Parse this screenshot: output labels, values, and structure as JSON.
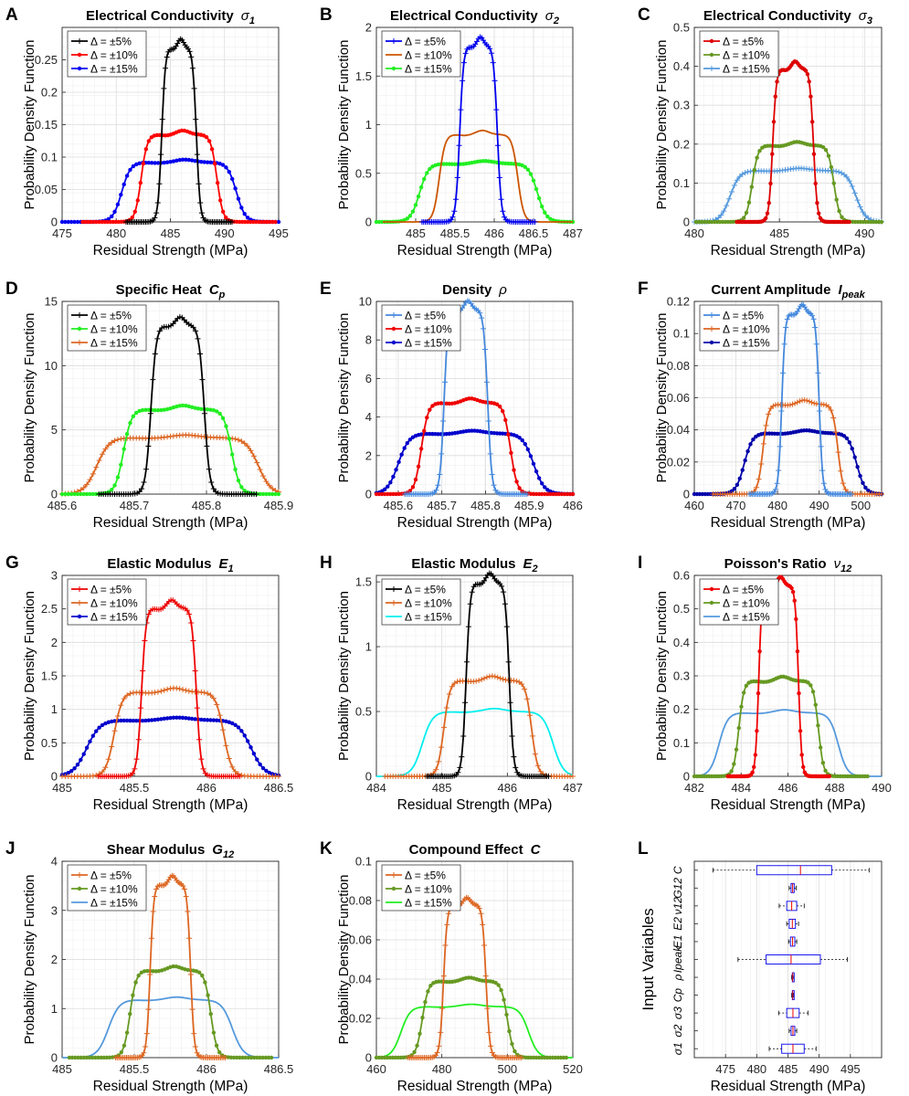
{
  "figure": {
    "xlabel": "Residual Strength (MPa)",
    "ylabel": "Probability Density Function",
    "legend_entries": [
      "Δ = ±5%",
      "Δ = ±10%",
      "Δ = ±15%"
    ]
  },
  "chart_data": [
    {
      "type": "line",
      "letter": "A",
      "title": "Electrical Conductivity",
      "symbol": "σ",
      "sub": "1",
      "xlim": [
        475,
        495
      ],
      "xticks": [
        475,
        480,
        485,
        490,
        495
      ],
      "ylim": [
        0,
        0.3
      ],
      "yticks": [
        0,
        0.05,
        0.1,
        0.15,
        0.2,
        0.25
      ],
      "xlabel": "Residual Strength (MPa)",
      "ylabel": "Probability Density Function",
      "series": [
        {
          "name": "Δ = ±5%",
          "color": "#000000",
          "marker": "plus",
          "center": 485.8,
          "half": 1.6,
          "edge": 0.55,
          "peak": 0.27
        },
        {
          "name": "Δ = ±10%",
          "color": "#ff0000",
          "marker": "dot",
          "center": 485.8,
          "half": 3.5,
          "edge": 0.9,
          "peak": 0.135
        },
        {
          "name": "Δ = ±15%",
          "color": "#0000ee",
          "marker": "dot",
          "center": 485.8,
          "half": 5.3,
          "edge": 1.3,
          "peak": 0.092
        }
      ]
    },
    {
      "type": "line",
      "letter": "B",
      "title": "Electrical Conductivity",
      "symbol": "σ",
      "sub": "2",
      "xlim": [
        484.5,
        487
      ],
      "xticks": [
        485,
        485.5,
        486,
        486.5,
        487
      ],
      "ylim": [
        0,
        2
      ],
      "yticks": [
        0,
        0.5,
        1,
        1.5,
        2
      ],
      "xlabel": "Residual Strength (MPa)",
      "ylabel": "Probability Density Function",
      "series": [
        {
          "name": "Δ = ±5%",
          "color": "#0000ee",
          "marker": "plus",
          "center": 485.8,
          "half": 0.24,
          "edge": 0.08,
          "peak": 1.82
        },
        {
          "name": "Δ = ±10%",
          "color": "#cc5500",
          "marker": "none",
          "center": 485.8,
          "half": 0.5,
          "edge": 0.12,
          "peak": 0.9
        },
        {
          "name": "Δ = ±15%",
          "color": "#22ee22",
          "marker": "dot",
          "center": 485.8,
          "half": 0.75,
          "edge": 0.18,
          "peak": 0.6
        }
      ]
    },
    {
      "type": "line",
      "letter": "C",
      "title": "Electrical Conductivity",
      "symbol": "σ",
      "sub": "3",
      "xlim": [
        480,
        491
      ],
      "xticks": [
        480,
        485,
        490
      ],
      "ylim": [
        0,
        0.5
      ],
      "yticks": [
        0,
        0.1,
        0.2,
        0.3,
        0.4,
        0.5
      ],
      "xlabel": "Residual Strength (MPa)",
      "ylabel": "Probability Density Function",
      "series": [
        {
          "name": "Δ = ±5%",
          "color": "#dd0000",
          "marker": "dot",
          "center": 485.8,
          "half": 1.2,
          "edge": 0.35,
          "peak": 0.395
        },
        {
          "name": "Δ = ±10%",
          "color": "#669922",
          "marker": "dot",
          "center": 485.8,
          "half": 2.4,
          "edge": 0.55,
          "peak": 0.197
        },
        {
          "name": "Δ = ±15%",
          "color": "#5599dd",
          "marker": "plus",
          "center": 485.8,
          "half": 3.7,
          "edge": 0.9,
          "peak": 0.132
        }
      ]
    },
    {
      "type": "line",
      "letter": "D",
      "title": "Specific Heat",
      "symbol": "C",
      "sub": "p",
      "xlim": [
        485.6,
        485.9
      ],
      "xticks": [
        485.6,
        485.7,
        485.8,
        485.9
      ],
      "ylim": [
        0,
        15
      ],
      "yticks": [
        0,
        5,
        10,
        15
      ],
      "xlabel": "Residual Strength (MPa)",
      "ylabel": "Probability Density Function",
      "series": [
        {
          "name": "Δ = ±5%",
          "color": "#000000",
          "marker": "plus",
          "center": 485.76,
          "half": 0.037,
          "edge": 0.012,
          "peak": 13.2
        },
        {
          "name": "Δ = ±10%",
          "color": "#22ee22",
          "marker": "dot",
          "center": 485.76,
          "half": 0.075,
          "edge": 0.018,
          "peak": 6.6
        },
        {
          "name": "Δ = ±15%",
          "color": "#dd6622",
          "marker": "plus",
          "center": 485.76,
          "half": 0.112,
          "edge": 0.028,
          "peak": 4.4
        }
      ]
    },
    {
      "type": "line",
      "letter": "E",
      "title": "Density",
      "symbol": "ρ",
      "sub": "",
      "xlim": [
        485.55,
        486
      ],
      "xticks": [
        485.6,
        485.7,
        485.8,
        485.9,
        486
      ],
      "ylim": [
        0,
        10
      ],
      "yticks": [
        0,
        2,
        4,
        6,
        8,
        10
      ],
      "xlabel": "Residual Strength (MPa)",
      "ylabel": "Probability Density Function",
      "series": [
        {
          "name": "Δ = ±5%",
          "color": "#4488dd",
          "marker": "plus",
          "center": 485.755,
          "half": 0.05,
          "edge": 0.015,
          "peak": 9.6
        },
        {
          "name": "Δ = ±10%",
          "color": "#ee0000",
          "marker": "dot",
          "center": 485.755,
          "half": 0.102,
          "edge": 0.025,
          "peak": 4.75
        },
        {
          "name": "Δ = ±15%",
          "color": "#0000cc",
          "marker": "dot",
          "center": 485.755,
          "half": 0.155,
          "edge": 0.04,
          "peak": 3.15
        }
      ]
    },
    {
      "type": "line",
      "letter": "F",
      "title": "Current Amplitude",
      "symbol": "I",
      "sub": "peak",
      "xlim": [
        460,
        505
      ],
      "xticks": [
        460,
        470,
        480,
        490,
        500
      ],
      "ylim": [
        0,
        0.12
      ],
      "yticks": [
        0,
        0.02,
        0.04,
        0.06,
        0.08,
        0.1,
        0.12
      ],
      "xlabel": "Residual Strength (MPa)",
      "ylabel": "Probability Density Function",
      "series": [
        {
          "name": "Δ = ±5%",
          "color": "#4488dd",
          "marker": "plus",
          "center": 485.5,
          "half": 4.5,
          "edge": 1.3,
          "peak": 0.113
        },
        {
          "name": "Δ = ±10%",
          "color": "#dd6622",
          "marker": "plus",
          "center": 485.5,
          "half": 9,
          "edge": 2,
          "peak": 0.056
        },
        {
          "name": "Δ = ±15%",
          "color": "#0000aa",
          "marker": "dot",
          "center": 485.5,
          "half": 13.5,
          "edge": 3.2,
          "peak": 0.038
        }
      ]
    },
    {
      "type": "line",
      "letter": "G",
      "title": "Elastic Modulus",
      "symbol": "E",
      "sub": "1",
      "xlim": [
        485,
        486.5
      ],
      "xticks": [
        485,
        485.5,
        486,
        486.5
      ],
      "ylim": [
        0,
        3
      ],
      "yticks": [
        0,
        0.5,
        1,
        1.5,
        2,
        2.5,
        3
      ],
      "xlabel": "Residual Strength (MPa)",
      "ylabel": "Probability Density Function",
      "series": [
        {
          "name": "Δ = ±5%",
          "color": "#ee0000",
          "marker": "plus",
          "center": 485.74,
          "half": 0.19,
          "edge": 0.05,
          "peak": 2.52
        },
        {
          "name": "Δ = ±10%",
          "color": "#dd6622",
          "marker": "plus",
          "center": 485.74,
          "half": 0.38,
          "edge": 0.09,
          "peak": 1.26
        },
        {
          "name": "Δ = ±15%",
          "color": "#0000cc",
          "marker": "dot",
          "center": 485.74,
          "half": 0.57,
          "edge": 0.15,
          "peak": 0.84
        }
      ]
    },
    {
      "type": "line",
      "letter": "H",
      "title": "Elastic Modulus",
      "symbol": "E",
      "sub": "2",
      "xlim": [
        484,
        487
      ],
      "xticks": [
        484,
        485,
        486,
        487
      ],
      "ylim": [
        0,
        1.55
      ],
      "yticks": [
        0,
        0.5,
        1,
        1.5
      ],
      "xlabel": "Residual Strength (MPa)",
      "ylabel": "Probability Density Function",
      "series": [
        {
          "name": "Δ = ±5%",
          "color": "#000000",
          "marker": "plus",
          "center": 485.7,
          "half": 0.33,
          "edge": 0.1,
          "peak": 1.5
        },
        {
          "name": "Δ = ±10%",
          "color": "#dd6622",
          "marker": "plus",
          "center": 485.7,
          "half": 0.67,
          "edge": 0.15,
          "peak": 0.74
        },
        {
          "name": "Δ = ±15%",
          "color": "#00eeee",
          "marker": "none",
          "center": 485.7,
          "half": 1.0,
          "edge": 0.25,
          "peak": 0.5
        }
      ]
    },
    {
      "type": "line",
      "letter": "I",
      "title": "Poisson's Ratio",
      "symbol": "ν",
      "sub": "12",
      "xlim": [
        482,
        490
      ],
      "xticks": [
        482,
        484,
        486,
        488,
        490
      ],
      "ylim": [
        0,
        0.6
      ],
      "yticks": [
        0,
        0.1,
        0.2,
        0.3,
        0.4,
        0.5,
        0.6
      ],
      "xlabel": "Residual Strength (MPa)",
      "ylabel": "Probability Density Function",
      "series": [
        {
          "name": "Δ = ±5%",
          "color": "#ee0000",
          "marker": "dot",
          "center": 485.6,
          "half": 0.85,
          "edge": 0.22,
          "peak": 0.57
        },
        {
          "name": "Δ = ±10%",
          "color": "#669922",
          "marker": "dot",
          "center": 485.6,
          "half": 1.7,
          "edge": 0.35,
          "peak": 0.285
        },
        {
          "name": "Δ = ±15%",
          "color": "#5599dd",
          "marker": "none",
          "center": 485.6,
          "half": 2.55,
          "edge": 0.6,
          "peak": 0.19
        }
      ]
    },
    {
      "type": "line",
      "letter": "J",
      "title": "Shear Modulus",
      "symbol": "G",
      "sub": "12",
      "xlim": [
        485,
        486.5
      ],
      "xticks": [
        485,
        485.5,
        486,
        486.5
      ],
      "ylim": [
        0,
        4
      ],
      "yticks": [
        0,
        1,
        2,
        3,
        4
      ],
      "xlabel": "Residual Strength (MPa)",
      "ylabel": "Probability Density Function",
      "series": [
        {
          "name": "Δ = ±5%",
          "color": "#dd6622",
          "marker": "plus",
          "center": 485.75,
          "half": 0.14,
          "edge": 0.04,
          "peak": 3.55
        },
        {
          "name": "Δ = ±10%",
          "color": "#669922",
          "marker": "dot",
          "center": 485.75,
          "half": 0.28,
          "edge": 0.07,
          "peak": 1.78
        },
        {
          "name": "Δ = ±15%",
          "color": "#5599dd",
          "marker": "none",
          "center": 485.75,
          "half": 0.43,
          "edge": 0.12,
          "peak": 1.18
        }
      ]
    },
    {
      "type": "line",
      "letter": "K",
      "title": "Compound Effect",
      "symbol": "C",
      "sub": "",
      "xlim": [
        460,
        520
      ],
      "xticks": [
        460,
        480,
        500,
        520
      ],
      "ylim": [
        0,
        0.1
      ],
      "yticks": [
        0,
        0.02,
        0.04,
        0.06,
        0.08,
        0.1
      ],
      "xlabel": "Residual Strength (MPa)",
      "ylabel": "Probability Density Function",
      "series": [
        {
          "name": "Δ = ±5%",
          "color": "#dd6622",
          "marker": "plus",
          "center": 487,
          "half": 6.5,
          "edge": 1.8,
          "peak": 0.078
        },
        {
          "name": "Δ = ±10%",
          "color": "#669922",
          "marker": "dot",
          "center": 487,
          "half": 13,
          "edge": 3,
          "peak": 0.039
        },
        {
          "name": "Δ = ±15%",
          "color": "#22ee22",
          "marker": "none",
          "center": 487,
          "half": 19.5,
          "edge": 4.5,
          "peak": 0.026
        }
      ]
    },
    {
      "type": "box",
      "letter": "L",
      "title": "",
      "xlim": [
        470,
        500
      ],
      "xticks": [
        475,
        480,
        485,
        490,
        495
      ],
      "xlabel": "Residual Strength (MPa)",
      "ylabel": "Input Variables",
      "categories": [
        "σ1",
        "σ2",
        "σ3",
        "Cp",
        "ρ",
        "Ipeak",
        "E1",
        "E2",
        "ν12",
        "G12",
        "C"
      ],
      "boxes": [
        {
          "label": "σ1",
          "min": 482,
          "q1": 484,
          "median": 485.8,
          "q3": 487.6,
          "max": 489.5
        },
        {
          "label": "σ2",
          "min": 485.2,
          "q1": 485.5,
          "median": 485.8,
          "q3": 486.1,
          "max": 486.4
        },
        {
          "label": "σ3",
          "min": 483.5,
          "q1": 484.8,
          "median": 485.8,
          "q3": 486.8,
          "max": 488.2
        },
        {
          "label": "Cp",
          "min": 485.6,
          "q1": 485.7,
          "median": 485.76,
          "q3": 485.82,
          "max": 485.9
        },
        {
          "label": "ρ",
          "min": 485.6,
          "q1": 485.7,
          "median": 485.76,
          "q3": 485.82,
          "max": 485.95
        },
        {
          "label": "Ipeak",
          "min": 477,
          "q1": 481.5,
          "median": 485.5,
          "q3": 490.2,
          "max": 494.5
        },
        {
          "label": "E1",
          "min": 485.1,
          "q1": 485.4,
          "median": 485.74,
          "q3": 486.1,
          "max": 486.4
        },
        {
          "label": "E2",
          "min": 484.8,
          "q1": 485.2,
          "median": 485.7,
          "q3": 486.2,
          "max": 486.7
        },
        {
          "label": "ν12",
          "min": 483.6,
          "q1": 484.8,
          "median": 485.6,
          "q3": 486.4,
          "max": 487.6
        },
        {
          "label": "G12",
          "min": 485.2,
          "q1": 485.5,
          "median": 485.75,
          "q3": 486,
          "max": 486.3
        },
        {
          "label": "C",
          "min": 473,
          "q1": 480,
          "median": 487,
          "q3": 492,
          "max": 498
        }
      ]
    }
  ]
}
